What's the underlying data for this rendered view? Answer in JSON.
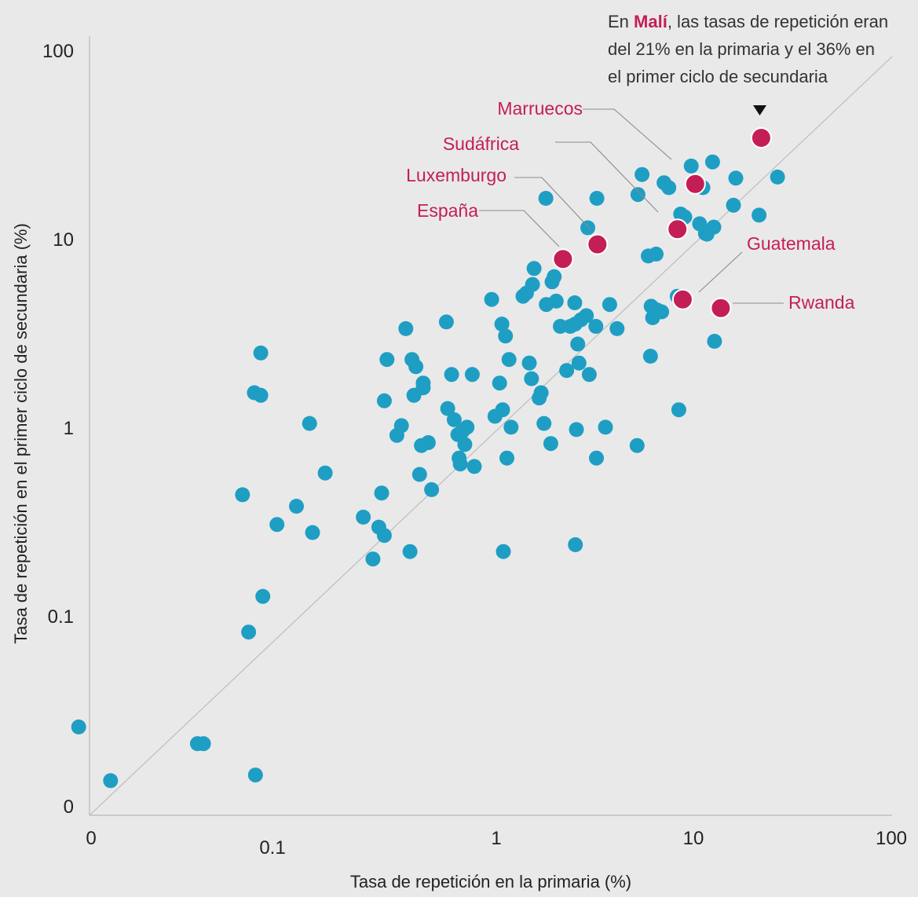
{
  "chart_data": {
    "type": "scatter",
    "xlabel": "Tasa de repetición en la primaria (%)",
    "ylabel": "Tasa de repetición en el primer ciclo de secundaria (%)",
    "x_scale": "log",
    "y_scale": "log",
    "x_ticks": [
      "0",
      "0.1",
      "1",
      "10",
      "100"
    ],
    "y_ticks": [
      "0",
      "0.1",
      "1",
      "10",
      "100"
    ],
    "reference_line": "y = x",
    "annotation": {
      "prefix": "En ",
      "country": "Malí",
      "line1_rest": ", las tasas de repetición eran",
      "line2": "del 21% en la primaria y el 36% en",
      "line3": "el primer ciclo de secundaria"
    },
    "highlights": [
      {
        "name": "Marruecos",
        "x": 10.2,
        "y": 20.5
      },
      {
        "name": "Sudáfrica",
        "x": 8.4,
        "y": 11.8
      },
      {
        "name": "Luxemburgo",
        "x": 3.5,
        "y": 9.8
      },
      {
        "name": "España",
        "x": 2.4,
        "y": 8.2
      },
      {
        "name": "Guatemala",
        "x": 8.9,
        "y": 5.0
      },
      {
        "name": "Rwanda",
        "x": 13.5,
        "y": 4.5
      },
      {
        "name": "Malí",
        "x": 21,
        "y": 36
      }
    ],
    "points": [
      [
        0.012,
        0.027
      ],
      [
        0.017,
        0.014
      ],
      [
        0.044,
        0.022
      ],
      [
        0.047,
        0.022
      ],
      [
        0.072,
        0.46
      ],
      [
        0.077,
        0.086
      ],
      [
        0.082,
        1.6
      ],
      [
        0.083,
        0.015
      ],
      [
        0.088,
        2.6
      ],
      [
        0.088,
        1.55
      ],
      [
        0.09,
        0.133
      ],
      [
        0.105,
        0.32
      ],
      [
        0.13,
        0.4
      ],
      [
        0.15,
        1.1
      ],
      [
        0.155,
        0.29
      ],
      [
        0.178,
        0.6
      ],
      [
        0.27,
        0.35
      ],
      [
        0.3,
        0.21
      ],
      [
        0.32,
        0.31
      ],
      [
        0.33,
        0.47
      ],
      [
        0.34,
        1.45
      ],
      [
        0.34,
        0.28
      ],
      [
        0.35,
        2.4
      ],
      [
        0.39,
        0.95
      ],
      [
        0.41,
        1.07
      ],
      [
        0.43,
        3.5
      ],
      [
        0.45,
        0.23
      ],
      [
        0.46,
        2.4
      ],
      [
        0.47,
        1.55
      ],
      [
        0.48,
        2.2
      ],
      [
        0.5,
        0.59
      ],
      [
        0.51,
        0.84
      ],
      [
        0.52,
        1.8
      ],
      [
        0.52,
        1.7
      ],
      [
        0.55,
        0.87
      ],
      [
        0.57,
        0.49
      ],
      [
        0.67,
        3.8
      ],
      [
        0.68,
        1.32
      ],
      [
        0.71,
        2.0
      ],
      [
        0.73,
        1.15
      ],
      [
        0.76,
        0.96
      ],
      [
        0.77,
        0.72
      ],
      [
        0.78,
        0.67
      ],
      [
        0.8,
        1.0
      ],
      [
        0.82,
        0.85
      ],
      [
        0.84,
        1.05
      ],
      [
        0.89,
        2.0
      ],
      [
        0.91,
        0.65
      ],
      [
        1.1,
        5.0
      ],
      [
        1.14,
        1.2
      ],
      [
        1.2,
        1.8
      ],
      [
        1.23,
        3.7
      ],
      [
        1.24,
        1.3
      ],
      [
        1.25,
        0.23
      ],
      [
        1.28,
        3.2
      ],
      [
        1.3,
        0.72
      ],
      [
        1.33,
        2.4
      ],
      [
        1.36,
        1.05
      ],
      [
        1.55,
        5.2
      ],
      [
        1.61,
        5.4
      ],
      [
        1.66,
        2.3
      ],
      [
        1.7,
        1.9
      ],
      [
        1.72,
        6.0
      ],
      [
        1.75,
        7.3
      ],
      [
        1.85,
        1.5
      ],
      [
        1.89,
        1.6
      ],
      [
        1.95,
        1.1
      ],
      [
        1.99,
        17.2
      ],
      [
        2.0,
        4.7
      ],
      [
        2.1,
        0.86
      ],
      [
        2.13,
        6.2
      ],
      [
        2.18,
        6.6
      ],
      [
        2.23,
        4.9
      ],
      [
        2.33,
        3.6
      ],
      [
        2.5,
        2.1
      ],
      [
        2.6,
        3.6
      ],
      [
        2.73,
        4.8
      ],
      [
        2.74,
        3.7
      ],
      [
        2.75,
        0.25
      ],
      [
        2.78,
        1.02
      ],
      [
        2.82,
        2.9
      ],
      [
        2.86,
        2.3
      ],
      [
        2.92,
        3.9
      ],
      [
        3.1,
        4.1
      ],
      [
        3.15,
        12.0
      ],
      [
        3.2,
        2.0
      ],
      [
        3.44,
        3.6
      ],
      [
        3.46,
        0.72
      ],
      [
        3.48,
        17.2
      ],
      [
        3.82,
        1.05
      ],
      [
        4.0,
        4.7
      ],
      [
        4.34,
        3.5
      ],
      [
        5.4,
        0.84
      ],
      [
        5.45,
        18.0
      ],
      [
        5.7,
        23.0
      ],
      [
        6.1,
        8.5
      ],
      [
        6.25,
        2.5
      ],
      [
        6.3,
        4.6
      ],
      [
        6.4,
        4.0
      ],
      [
        6.65,
        8.7
      ],
      [
        6.72,
        4.4
      ],
      [
        7.07,
        4.3
      ],
      [
        7.25,
        20.8
      ],
      [
        7.64,
        19.6
      ],
      [
        8.38,
        5.2
      ],
      [
        8.52,
        1.3
      ],
      [
        8.7,
        14.2
      ],
      [
        9.1,
        13.7
      ],
      [
        9.76,
        25.5
      ],
      [
        10.7,
        12.6
      ],
      [
        11.1,
        19.6
      ],
      [
        11.4,
        11.2
      ],
      [
        11.6,
        11.1
      ],
      [
        12.33,
        26.8
      ],
      [
        12.5,
        12.1
      ],
      [
        12.6,
        3.0
      ],
      [
        15.5,
        15.8
      ],
      [
        15.9,
        22.0
      ],
      [
        20.5,
        14.0
      ],
      [
        25.1,
        22.3
      ]
    ]
  }
}
